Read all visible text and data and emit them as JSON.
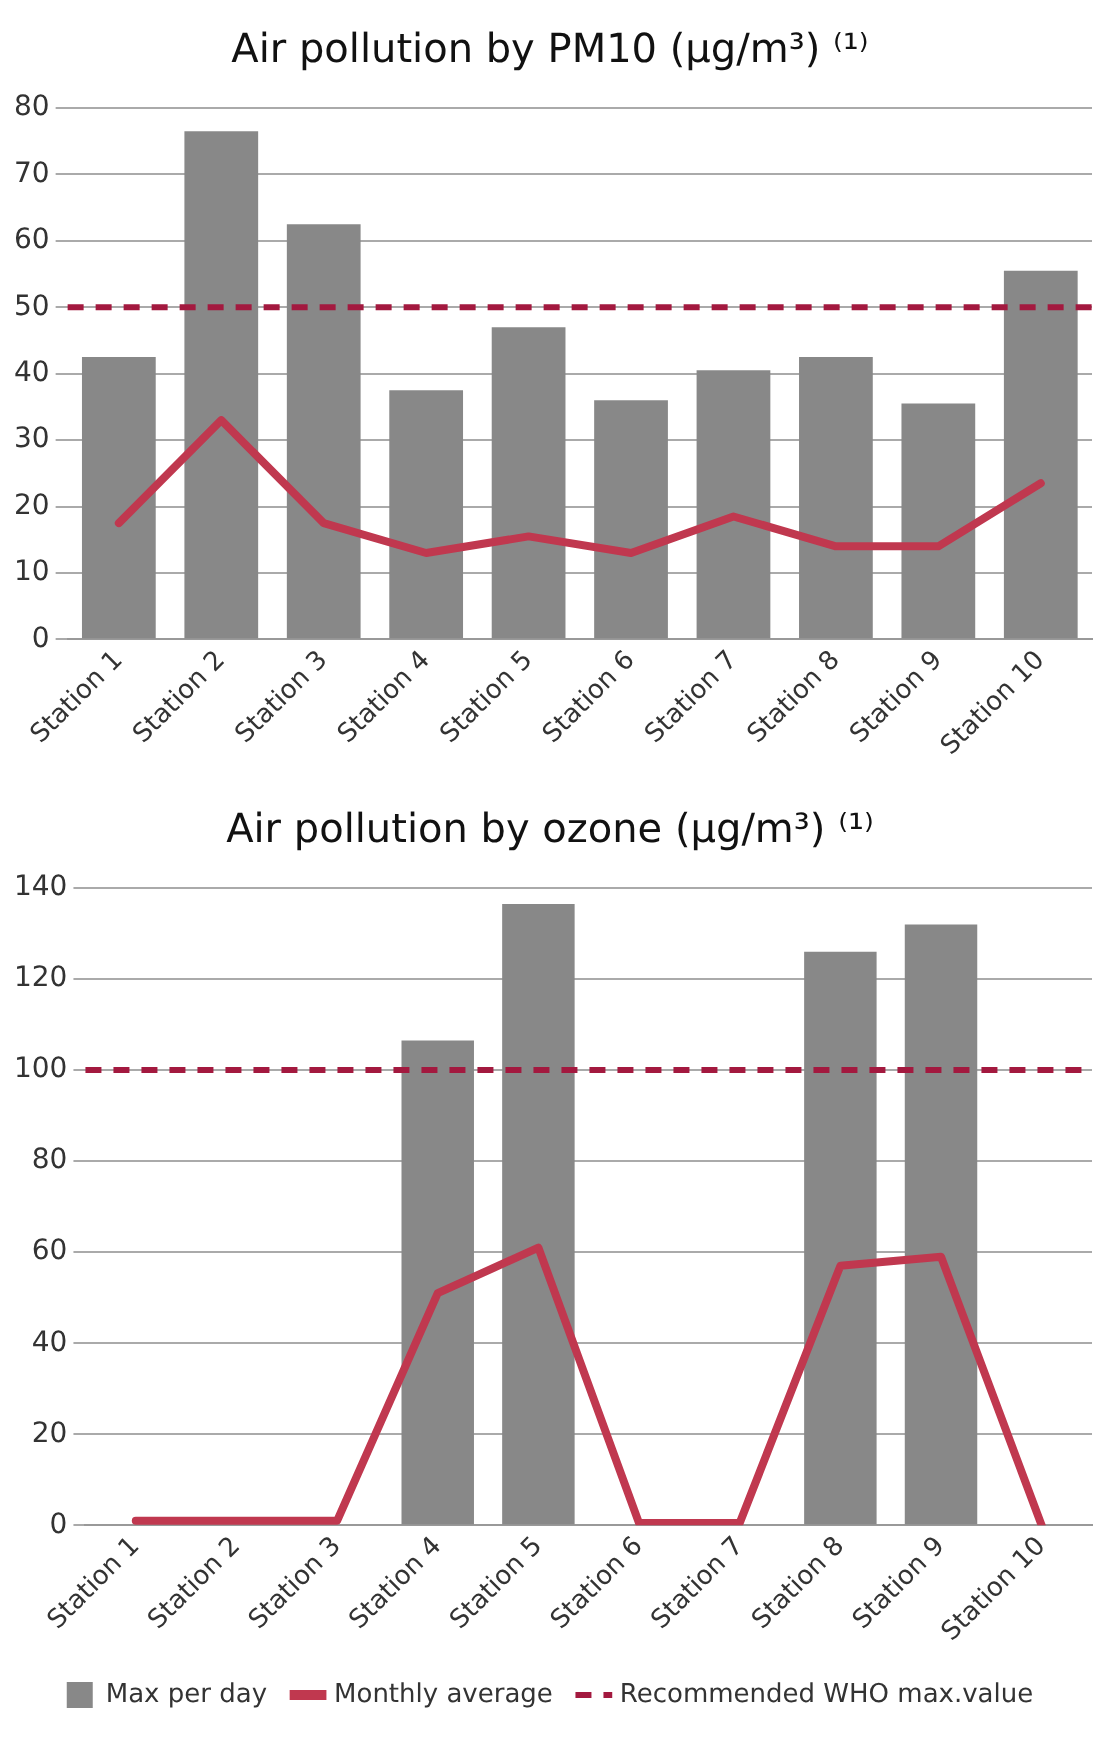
{
  "chart_data": [
    {
      "type": "bar",
      "title": "Air pollution by PM10 (µg/m³) ⁽¹⁾",
      "categories": [
        "Station 1",
        "Station 2",
        "Station 3",
        "Station 4",
        "Station 5",
        "Station 6",
        "Station 7",
        "Station 8",
        "Station 9",
        "Station 10"
      ],
      "series": [
        {
          "color": "#888888",
          "values": [
            42.5,
            76.5,
            62.5,
            37.5,
            47,
            36,
            40.5,
            42.5,
            35.5,
            55.5
          ]
        },
        {
          "type": "line",
          "color": "#c0384f",
          "values": [
            17.5,
            33,
            17.5,
            13,
            15.5,
            13,
            18.5,
            14,
            14,
            23.5
          ]
        }
      ],
      "ylim": [
        0,
        80
      ],
      "yticks": [
        0,
        10,
        20,
        30,
        40,
        50,
        60,
        70,
        80
      ],
      "grid": "y",
      "marker": "none",
      "line_style": "solid",
      "legend": false,
      "ref_lines": [
        {
          "axis": "y",
          "value": 50,
          "color": "#a3193f",
          "line_style": "dashed"
        }
      ]
    },
    {
      "type": "bar",
      "title": "Air pollution by ozone (µg/m³) ⁽¹⁾",
      "categories": [
        "Station 1",
        "Station 2",
        "Station 3",
        "Station 4",
        "Station 5",
        "Station 6",
        "Station 7",
        "Station 8",
        "Station 9",
        "Station 10"
      ],
      "series": [
        {
          "name": "Max per day",
          "color": "#888888",
          "values": [
            null,
            null,
            null,
            106.5,
            136.5,
            null,
            null,
            126,
            132,
            null
          ]
        },
        {
          "type": "line",
          "name": "Monthly average",
          "color": "#c0384f",
          "values": [
            1,
            1,
            1,
            51,
            61,
            0.5,
            0.5,
            57,
            59,
            0
          ]
        }
      ],
      "ylim": [
        0,
        140
      ],
      "yticks": [
        0,
        20,
        40,
        60,
        80,
        100,
        120,
        140
      ],
      "grid": "y",
      "marker": "none",
      "line_style": "solid",
      "legend": "bottom",
      "ref_lines": [
        {
          "axis": "y",
          "value": 100,
          "label": "Recommended WHO max.value",
          "color": "#a3193f",
          "line_style": "dashed"
        }
      ]
    }
  ]
}
